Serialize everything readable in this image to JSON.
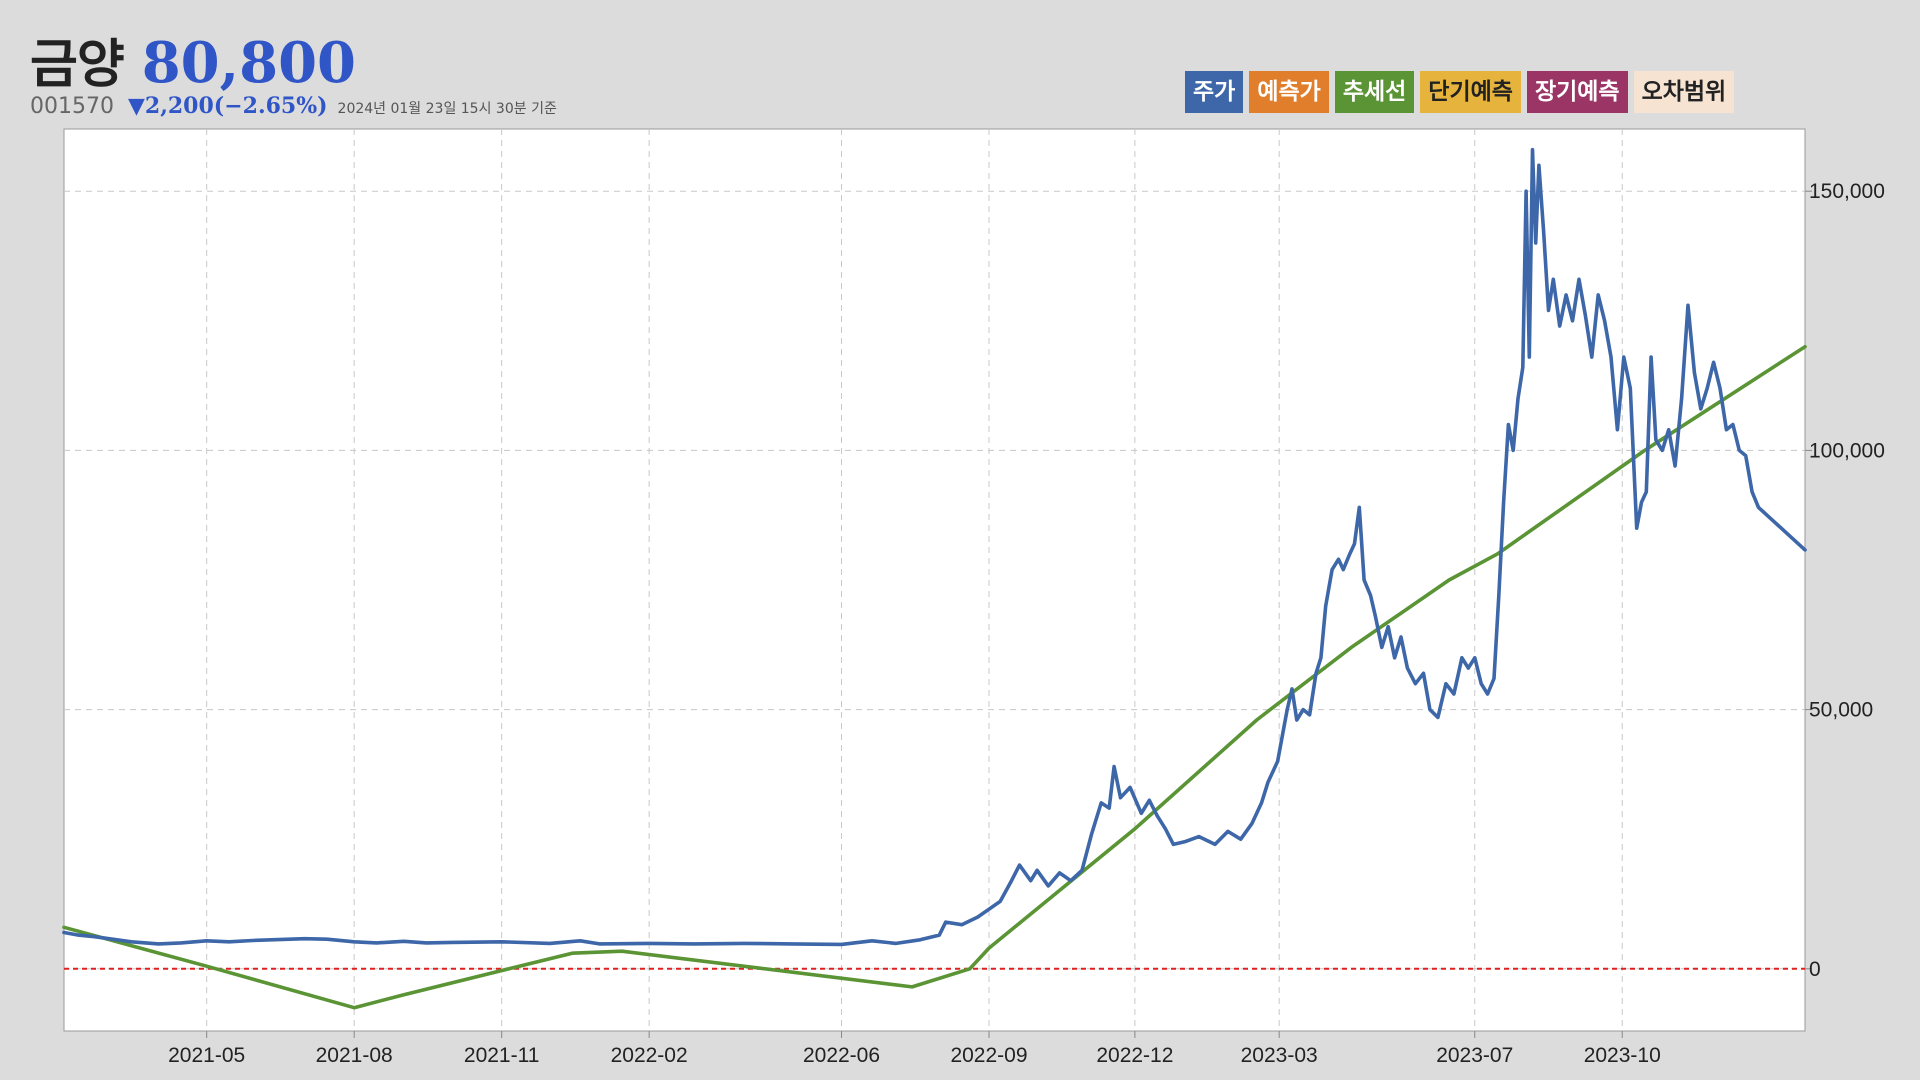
{
  "header": {
    "name": "금양",
    "price": "80,800",
    "code": "001570",
    "change": "▼2,200(−2.65%)",
    "as_of": "2024년 01월 23일 15시 30분 기준"
  },
  "legend": [
    {
      "label": "주가",
      "bg": "#3d67a8",
      "color": "#ffffff"
    },
    {
      "label": "예측가",
      "bg": "#e07e2b",
      "color": "#ffffff"
    },
    {
      "label": "추세선",
      "bg": "#5a9435",
      "color": "#ffffff"
    },
    {
      "label": "단기예측",
      "bg": "#e6b43c",
      "color": "#222222"
    },
    {
      "label": "장기예측",
      "bg": "#9b3566",
      "color": "#ffffff"
    },
    {
      "label": "오차범위",
      "bg": "#f6e3d2",
      "color": "#222222"
    }
  ],
  "chart_data": {
    "type": "line",
    "x_ticks": [
      "2021-05",
      "2021-08",
      "2021-11",
      "2022-02",
      "2022-06",
      "2022-09",
      "2022-12",
      "2023-03",
      "2023-07",
      "2023-10"
    ],
    "y_ticks": [
      "0",
      "50,000",
      "100,000",
      "150,000"
    ],
    "ylim": [
      -12000,
      162000
    ],
    "xlim": [
      "2021-02-01",
      "2024-01-23"
    ],
    "y_axis_position": "right",
    "grid": true,
    "reference_line": {
      "y": 0,
      "color": "#e02020",
      "style": "dashed"
    },
    "series": [
      {
        "name": "주가",
        "color": "#3d67a8",
        "points": [
          [
            "2021-02-01",
            7000
          ],
          [
            "2021-02-10",
            6500
          ],
          [
            "2021-02-20",
            6200
          ],
          [
            "2021-03-01",
            5800
          ],
          [
            "2021-03-15",
            5200
          ],
          [
            "2021-04-01",
            4800
          ],
          [
            "2021-04-15",
            5000
          ],
          [
            "2021-05-01",
            5400
          ],
          [
            "2021-05-15",
            5200
          ],
          [
            "2021-06-01",
            5500
          ],
          [
            "2021-07-01",
            5800
          ],
          [
            "2021-07-15",
            5700
          ],
          [
            "2021-08-01",
            5200
          ],
          [
            "2021-08-15",
            5000
          ],
          [
            "2021-09-01",
            5300
          ],
          [
            "2021-09-15",
            5000
          ],
          [
            "2021-10-01",
            5100
          ],
          [
            "2021-11-01",
            5200
          ],
          [
            "2021-12-01",
            4900
          ],
          [
            "2021-12-20",
            5400
          ],
          [
            "2022-01-01",
            4800
          ],
          [
            "2022-02-01",
            4900
          ],
          [
            "2022-03-01",
            4800
          ],
          [
            "2022-04-01",
            4900
          ],
          [
            "2022-05-01",
            4800
          ],
          [
            "2022-06-01",
            4700
          ],
          [
            "2022-06-20",
            5400
          ],
          [
            "2022-07-05",
            4900
          ],
          [
            "2022-07-20",
            5600
          ],
          [
            "2022-08-01",
            6500
          ],
          [
            "2022-08-05",
            9000
          ],
          [
            "2022-08-15",
            8500
          ],
          [
            "2022-08-25",
            10000
          ],
          [
            "2022-09-01",
            11500
          ],
          [
            "2022-09-08",
            13000
          ],
          [
            "2022-09-15",
            17000
          ],
          [
            "2022-09-20",
            20000
          ],
          [
            "2022-09-27",
            17000
          ],
          [
            "2022-10-01",
            19000
          ],
          [
            "2022-10-08",
            16000
          ],
          [
            "2022-10-15",
            18500
          ],
          [
            "2022-10-22",
            17000
          ],
          [
            "2022-10-29",
            19000
          ],
          [
            "2022-11-04",
            26000
          ],
          [
            "2022-11-10",
            32000
          ],
          [
            "2022-11-15",
            31000
          ],
          [
            "2022-11-18",
            39000
          ],
          [
            "2022-11-22",
            33000
          ],
          [
            "2022-11-28",
            35000
          ],
          [
            "2022-12-05",
            30000
          ],
          [
            "2022-12-10",
            32500
          ],
          [
            "2022-12-15",
            29500
          ],
          [
            "2022-12-20",
            27000
          ],
          [
            "2022-12-25",
            24000
          ],
          [
            "2023-01-01",
            24500
          ],
          [
            "2023-01-10",
            25500
          ],
          [
            "2023-01-20",
            24000
          ],
          [
            "2023-01-28",
            26500
          ],
          [
            "2023-02-05",
            25000
          ],
          [
            "2023-02-12",
            28000
          ],
          [
            "2023-02-18",
            32000
          ],
          [
            "2023-02-22",
            36000
          ],
          [
            "2023-02-28",
            40000
          ],
          [
            "2023-03-03",
            45000
          ],
          [
            "2023-03-06",
            50000
          ],
          [
            "2023-03-09",
            54000
          ],
          [
            "2023-03-12",
            48000
          ],
          [
            "2023-03-16",
            50000
          ],
          [
            "2023-03-20",
            49000
          ],
          [
            "2023-03-24",
            57000
          ],
          [
            "2023-03-27",
            60000
          ],
          [
            "2023-03-30",
            70000
          ],
          [
            "2023-04-03",
            77000
          ],
          [
            "2023-04-07",
            79000
          ],
          [
            "2023-04-10",
            77000
          ],
          [
            "2023-04-14",
            80000
          ],
          [
            "2023-04-17",
            82000
          ],
          [
            "2023-04-20",
            89000
          ],
          [
            "2023-04-23",
            75000
          ],
          [
            "2023-04-27",
            72000
          ],
          [
            "2023-04-30",
            68000
          ],
          [
            "2023-05-04",
            62000
          ],
          [
            "2023-05-08",
            66000
          ],
          [
            "2023-05-12",
            60000
          ],
          [
            "2023-05-16",
            64000
          ],
          [
            "2023-05-20",
            58000
          ],
          [
            "2023-05-25",
            55000
          ],
          [
            "2023-05-30",
            57000
          ],
          [
            "2023-06-03",
            50000
          ],
          [
            "2023-06-08",
            48500
          ],
          [
            "2023-06-13",
            55000
          ],
          [
            "2023-06-18",
            53000
          ],
          [
            "2023-06-23",
            60000
          ],
          [
            "2023-06-27",
            58000
          ],
          [
            "2023-07-01",
            60000
          ],
          [
            "2023-07-05",
            55000
          ],
          [
            "2023-07-09",
            53000
          ],
          [
            "2023-07-13",
            56000
          ],
          [
            "2023-07-16",
            72000
          ],
          [
            "2023-07-19",
            90000
          ],
          [
            "2023-07-22",
            105000
          ],
          [
            "2023-07-25",
            100000
          ],
          [
            "2023-07-28",
            110000
          ],
          [
            "2023-07-31",
            116000
          ],
          [
            "2023-08-02",
            150000
          ],
          [
            "2023-08-04",
            118000
          ],
          [
            "2023-08-06",
            158000
          ],
          [
            "2023-08-08",
            140000
          ],
          [
            "2023-08-10",
            155000
          ],
          [
            "2023-08-13",
            142000
          ],
          [
            "2023-08-16",
            127000
          ],
          [
            "2023-08-19",
            133000
          ],
          [
            "2023-08-23",
            124000
          ],
          [
            "2023-08-27",
            130000
          ],
          [
            "2023-08-31",
            125000
          ],
          [
            "2023-09-04",
            133000
          ],
          [
            "2023-09-08",
            126000
          ],
          [
            "2023-09-12",
            118000
          ],
          [
            "2023-09-16",
            130000
          ],
          [
            "2023-09-20",
            125000
          ],
          [
            "2023-09-24",
            118000
          ],
          [
            "2023-09-28",
            104000
          ],
          [
            "2023-10-02",
            118000
          ],
          [
            "2023-10-06",
            112000
          ],
          [
            "2023-10-10",
            85000
          ],
          [
            "2023-10-13",
            90000
          ],
          [
            "2023-10-16",
            92000
          ],
          [
            "2023-10-19",
            118000
          ],
          [
            "2023-10-22",
            102000
          ],
          [
            "2023-10-26",
            100000
          ],
          [
            "2023-10-30",
            104000
          ],
          [
            "2023-11-03",
            97000
          ],
          [
            "2023-11-07",
            110000
          ],
          [
            "2023-11-11",
            128000
          ],
          [
            "2023-11-15",
            115000
          ],
          [
            "2023-11-19",
            108000
          ],
          [
            "2023-11-23",
            112000
          ],
          [
            "2023-11-27",
            117000
          ],
          [
            "2023-12-01",
            112000
          ],
          [
            "2023-12-05",
            104000
          ],
          [
            "2023-12-09",
            105000
          ],
          [
            "2023-12-13",
            100000
          ],
          [
            "2023-12-17",
            99000
          ],
          [
            "2023-12-21",
            92000
          ],
          [
            "2023-12-25",
            89000
          ],
          [
            "2024-01-23",
            80800
          ]
        ]
      },
      {
        "name": "추세선",
        "color": "#5a9435",
        "points": [
          [
            "2021-02-01",
            8000
          ],
          [
            "2021-05-01",
            500
          ],
          [
            "2021-08-01",
            -7500
          ],
          [
            "2021-09-01",
            -5000
          ],
          [
            "2021-12-15",
            3000
          ],
          [
            "2022-01-15",
            3400
          ],
          [
            "2022-07-15",
            -3500
          ],
          [
            "2022-08-20",
            0
          ],
          [
            "2022-09-01",
            4000
          ],
          [
            "2022-12-01",
            27000
          ],
          [
            "2023-02-15",
            48000
          ],
          [
            "2023-04-15",
            62000
          ],
          [
            "2023-06-15",
            75000
          ],
          [
            "2023-07-15",
            80000
          ],
          [
            "2023-10-15",
            100000
          ],
          [
            "2024-01-23",
            120000
          ]
        ]
      }
    ]
  }
}
